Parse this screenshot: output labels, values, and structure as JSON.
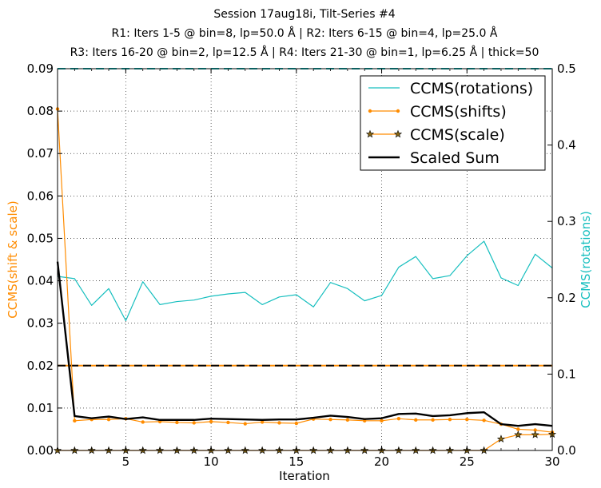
{
  "chart_data": {
    "type": "line",
    "title_lines": [
      "Session 17aug18i, Tilt-Series #4",
      "R1: Iters 1-5 @ bin=8, lp=50.0 Å | R2: Iters 6-15 @ bin=4, lp=25.0 Å",
      "R3: Iters 16-20 @ bin=2, lp=12.5 Å | R4: Iters 21-30 @ bin=1, lp=6.25 Å | thick=50"
    ],
    "xlabel": "Iteration",
    "ylabel_left": "CCMS(shift & scale)",
    "ylabel_right": "CCMS(rotations)",
    "xlim": [
      1,
      30
    ],
    "ylim_left": [
      0,
      0.09
    ],
    "ylim_right": [
      0,
      0.5
    ],
    "x_ticks": [
      5,
      10,
      15,
      20,
      25,
      30
    ],
    "y_ticks_left": [
      "0.00",
      "0.01",
      "0.02",
      "0.03",
      "0.04",
      "0.05",
      "0.06",
      "0.07",
      "0.08",
      "0.09"
    ],
    "y_ticks_right": [
      "0.0",
      "0.1",
      "0.2",
      "0.3",
      "0.4",
      "0.5"
    ],
    "grid": true,
    "legend_position": "top-right",
    "colors": {
      "rotations": "#17BFBF",
      "shifts": "#FF8C00",
      "scale": "#FF8C00",
      "scale_marker_fill": "#8B6914",
      "sum": "#000000",
      "left_axis_label": "#FF8C00",
      "right_axis_label": "#17BFBF"
    },
    "series": [
      {
        "name": "CCMS(rotations)",
        "axis": "right",
        "style": "line",
        "x": [
          1,
          2,
          3,
          4,
          5,
          6,
          7,
          8,
          9,
          10,
          11,
          12,
          13,
          14,
          15,
          16,
          17,
          18,
          19,
          20,
          21,
          22,
          23,
          24,
          25,
          26,
          27,
          28,
          29,
          30
        ],
        "y": [
          0.228,
          0.225,
          0.19,
          0.212,
          0.17,
          0.221,
          0.191,
          0.195,
          0.197,
          0.202,
          0.205,
          0.207,
          0.191,
          0.201,
          0.204,
          0.188,
          0.22,
          0.212,
          0.196,
          0.203,
          0.24,
          0.254,
          0.225,
          0.229,
          0.255,
          0.274,
          0.226,
          0.216,
          0.257,
          0.239
        ]
      },
      {
        "name": "CCMS(shifts)",
        "axis": "left",
        "style": "line-dot",
        "x": [
          1,
          2,
          3,
          4,
          5,
          6,
          7,
          8,
          9,
          10,
          11,
          12,
          13,
          14,
          15,
          16,
          17,
          18,
          19,
          20,
          21,
          22,
          23,
          24,
          25,
          26,
          27,
          28,
          29,
          30
        ],
        "y": [
          0.0805,
          0.007,
          0.0073,
          0.0073,
          0.0075,
          0.0067,
          0.0068,
          0.0066,
          0.0065,
          0.0068,
          0.0066,
          0.0063,
          0.0067,
          0.0065,
          0.0064,
          0.0074,
          0.0073,
          0.0072,
          0.007,
          0.007,
          0.0075,
          0.0072,
          0.0072,
          0.0073,
          0.0073,
          0.0071,
          0.0062,
          0.005,
          0.0048,
          0.0043
        ]
      },
      {
        "name": "CCMS(scale)",
        "axis": "left",
        "style": "line-star",
        "x": [
          1,
          2,
          3,
          4,
          5,
          6,
          7,
          8,
          9,
          10,
          11,
          12,
          13,
          14,
          15,
          16,
          17,
          18,
          19,
          20,
          21,
          22,
          23,
          24,
          25,
          26,
          27,
          28,
          29,
          30
        ],
        "y": [
          0,
          0,
          0,
          0,
          0,
          0,
          0,
          0,
          0,
          0,
          0,
          0,
          0,
          0,
          0,
          0,
          0,
          0,
          0,
          0,
          0,
          0,
          0,
          0,
          0,
          0,
          0.0027,
          0.0037,
          0.0037,
          0.0038
        ]
      },
      {
        "name": "Scaled Sum",
        "axis": "left",
        "style": "thick-line",
        "x": [
          1,
          2,
          3,
          4,
          5,
          6,
          7,
          8,
          9,
          10,
          11,
          12,
          13,
          14,
          15,
          16,
          17,
          18,
          19,
          20,
          21,
          22,
          23,
          24,
          25,
          26,
          27,
          28,
          29,
          30
        ],
        "y": [
          0.0445,
          0.0081,
          0.0076,
          0.008,
          0.0074,
          0.0078,
          0.0072,
          0.0072,
          0.0072,
          0.0075,
          0.0074,
          0.0073,
          0.0072,
          0.0073,
          0.0073,
          0.0077,
          0.0082,
          0.0079,
          0.0074,
          0.0076,
          0.0086,
          0.0087,
          0.0081,
          0.0083,
          0.0088,
          0.009,
          0.0062,
          0.0058,
          0.0062,
          0.0058
        ]
      }
    ],
    "reference_lines": [
      {
        "axis": "left",
        "y": 0.02,
        "style": "dashed",
        "colors": [
          "#FF8C00",
          "#000000"
        ]
      },
      {
        "axis": "right",
        "y": 0.5,
        "style": "dashed",
        "colors": [
          "#17BFBF"
        ]
      }
    ]
  }
}
